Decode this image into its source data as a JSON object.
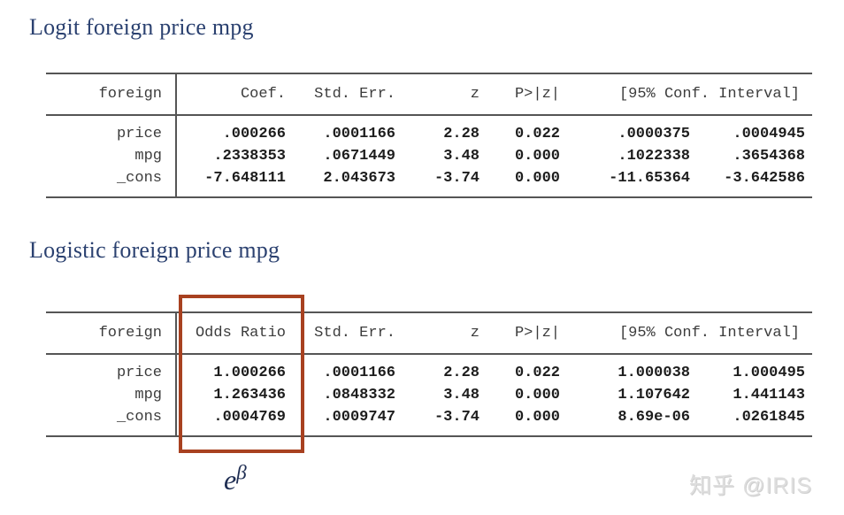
{
  "section1": {
    "title": "Logit foreign price mpg",
    "table": {
      "row_header": "foreign",
      "columns": [
        "Coef.",
        "Std. Err.",
        "z",
        "P>|z|"
      ],
      "ci_header": "[95% Conf. Interval]",
      "rows": [
        {
          "var": "price",
          "coef": ".000266",
          "se": ".0001166",
          "z": "2.28",
          "p": "0.022",
          "cil": ".0000375",
          "cih": ".0004945"
        },
        {
          "var": "mpg",
          "coef": ".2338353",
          "se": ".0671449",
          "z": "3.48",
          "p": "0.000",
          "cil": ".1022338",
          "cih": ".3654368"
        },
        {
          "var": "_cons",
          "coef": "-7.648111",
          "se": "2.043673",
          "z": "-3.74",
          "p": "0.000",
          "cil": "-11.65364",
          "cih": "-3.642586"
        }
      ]
    }
  },
  "section2": {
    "title": "Logistic foreign price mpg",
    "table": {
      "row_header": "foreign",
      "columns": [
        "Odds Ratio",
        "Std. Err.",
        "z",
        "P>|z|"
      ],
      "ci_header": "[95% Conf. Interval]",
      "rows": [
        {
          "var": "price",
          "coef": "1.000266",
          "se": ".0001166",
          "z": "2.28",
          "p": "0.022",
          "cil": "1.000038",
          "cih": "1.000495"
        },
        {
          "var": "mpg",
          "coef": "1.263436",
          "se": ".0848332",
          "z": "3.48",
          "p": "0.000",
          "cil": "1.107642",
          "cih": "1.441143"
        },
        {
          "var": "_cons",
          "coef": ".0004769",
          "se": ".0009747",
          "z": "-3.74",
          "p": "0.000",
          "cil": "8.69e-06",
          "cih": ".0261845"
        }
      ]
    }
  },
  "annotation": {
    "formula_base": "e",
    "formula_exponent": "β",
    "highlight_color": "#a84120"
  },
  "watermark": {
    "text": "知乎 @IRIS"
  },
  "colors": {
    "title_navy": "#2b4170",
    "table_text": "#3c3c3c",
    "value_text": "#1d1d1d",
    "rule_gray": "#555555",
    "watermark_gray": "#dedede"
  }
}
